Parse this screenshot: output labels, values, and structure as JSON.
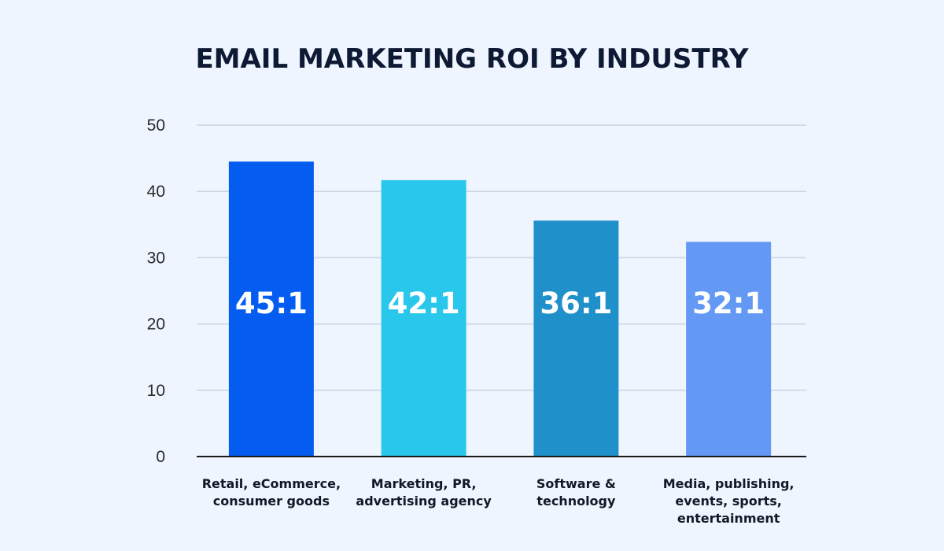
{
  "chart_data": {
    "type": "bar",
    "title": "EMAIL MARKETING ROI BY INDUSTRY",
    "xlabel": "",
    "ylabel": "",
    "ylim": [
      0,
      50
    ],
    "yticks": [
      0,
      10,
      20,
      30,
      40,
      50
    ],
    "grid": true,
    "categories": [
      [
        "Retail, eCommerce,",
        "consumer goods"
      ],
      [
        "Marketing, PR,",
        "advertising agency"
      ],
      [
        "Software &",
        "technology"
      ],
      [
        "Media, publishing,",
        "events, sports,",
        "entertainment"
      ]
    ],
    "values": [
      44.5,
      41.7,
      35.6,
      32.4
    ],
    "data_labels": [
      "45:1",
      "42:1",
      "36:1",
      "32:1"
    ],
    "colors": [
      "#045DF0",
      "#29C7EC",
      "#1F90C9",
      "#6399F5"
    ]
  }
}
